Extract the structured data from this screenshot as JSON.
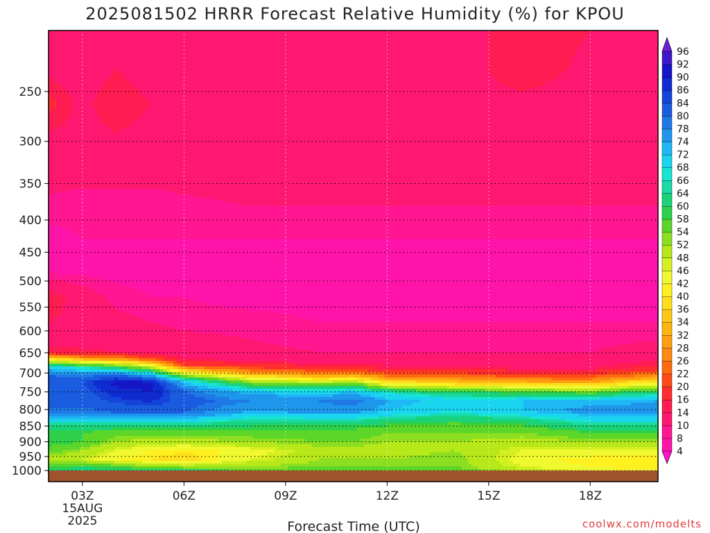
{
  "chart_data": {
    "type": "heatmap",
    "title": "2025081502 HRRR Forecast Relative Humidity (%) for KPOU",
    "xlabel": "Forecast Time (UTC)",
    "ylabel": "",
    "x_ticks": [
      "03Z",
      "06Z",
      "09Z",
      "12Z",
      "15Z",
      "18Z"
    ],
    "x_tick_hours": [
      3,
      6,
      9,
      12,
      15,
      18
    ],
    "x_date_label": [
      "15AUG",
      "2025"
    ],
    "xlim_hours": [
      2,
      20
    ],
    "y_ticks": [
      250,
      300,
      350,
      400,
      450,
      500,
      550,
      600,
      650,
      700,
      750,
      800,
      850,
      900,
      950,
      1000
    ],
    "ylim_hpa": [
      200,
      1000
    ],
    "y_scale": "log-pressure",
    "grid": true,
    "ground_color": "#a0522d",
    "colorbar": {
      "levels": [
        4,
        8,
        10,
        14,
        16,
        20,
        22,
        26,
        28,
        32,
        34,
        36,
        40,
        42,
        46,
        48,
        52,
        54,
        58,
        60,
        64,
        66,
        68,
        72,
        74,
        78,
        80,
        84,
        86,
        90,
        92,
        96
      ],
      "colors": [
        "#ff11cc",
        "#ff14aa",
        "#ff1690",
        "#ff1870",
        "#ff1c50",
        "#ff2d30",
        "#ff4a18",
        "#ff6a10",
        "#ff8a10",
        "#ffa010",
        "#ffb410",
        "#ffc818",
        "#ffde1c",
        "#fff020",
        "#f0f830",
        "#d4f020",
        "#b6e81a",
        "#8cde20",
        "#5cd628",
        "#2ed04a",
        "#1ad27a",
        "#1adaa8",
        "#18e4d2",
        "#1ad4f0",
        "#1eb8f4",
        "#1e96ec",
        "#1e78e6",
        "#1a5ce0",
        "#1444d8",
        "#0e2ad0",
        "#1616c6",
        "#3c18c8",
        "#6e1ed8"
      ],
      "extend": "both"
    },
    "profiles": {
      "hours": [
        2,
        3,
        4,
        5,
        6,
        8,
        10,
        11,
        12,
        14,
        16,
        18,
        20
      ],
      "columns": [
        {
          "p": [
            200,
            230,
            260,
            290,
            330,
            380,
            430,
            480,
            530,
            580,
            620,
            650,
            665,
            685,
            705,
            725,
            750,
            780,
            810,
            840,
            870,
            900,
            930,
            960,
            985,
            1000
          ],
          "rh": [
            13,
            13,
            17,
            14,
            12,
            9,
            7,
            7,
            16,
            14,
            12,
            16,
            40,
            70,
            80,
            82,
            80,
            82,
            78,
            66,
            58,
            60,
            56,
            50,
            58,
            60
          ]
        },
        {
          "p": [
            200,
            230,
            260,
            290,
            330,
            380,
            430,
            480,
            530,
            580,
            620,
            650,
            665,
            685,
            705,
            725,
            750,
            780,
            810,
            840,
            870,
            900,
            930,
            960,
            985,
            1000
          ],
          "rh": [
            12,
            12,
            13,
            13,
            11,
            9,
            8,
            7,
            12,
            13,
            12,
            15,
            32,
            66,
            78,
            84,
            82,
            82,
            78,
            66,
            58,
            58,
            52,
            48,
            60,
            62
          ]
        },
        {
          "p": [
            200,
            230,
            260,
            290,
            330,
            380,
            430,
            480,
            530,
            580,
            620,
            650,
            665,
            685,
            705,
            725,
            750,
            780,
            810,
            840,
            870,
            900,
            930,
            960,
            985,
            1000
          ],
          "rh": [
            12,
            14,
            16,
            14,
            11,
            9,
            8,
            7,
            9,
            11,
            12,
            14,
            28,
            60,
            80,
            92,
            88,
            84,
            80,
            66,
            56,
            52,
            46,
            42,
            56,
            64
          ]
        },
        {
          "p": [
            200,
            230,
            260,
            290,
            330,
            380,
            430,
            480,
            530,
            580,
            620,
            650,
            665,
            685,
            705,
            725,
            750,
            780,
            810,
            840,
            870,
            900,
            930,
            960,
            985,
            1000
          ],
          "rh": [
            12,
            12,
            14,
            13,
            11,
            9,
            8,
            7,
            8,
            10,
            12,
            13,
            22,
            50,
            74,
            92,
            90,
            86,
            80,
            66,
            56,
            50,
            42,
            40,
            54,
            64
          ]
        },
        {
          "p": [
            200,
            230,
            260,
            290,
            330,
            380,
            430,
            480,
            530,
            580,
            620,
            650,
            665,
            680,
            700,
            720,
            745,
            775,
            810,
            840,
            870,
            900,
            930,
            960,
            985,
            1000
          ],
          "rh": [
            12,
            12,
            13,
            13,
            12,
            9,
            8,
            7,
            8,
            9,
            11,
            12,
            14,
            20,
            44,
            70,
            80,
            82,
            80,
            66,
            56,
            50,
            40,
            38,
            50,
            62
          ]
        },
        {
          "p": [
            200,
            230,
            260,
            290,
            330,
            380,
            430,
            480,
            530,
            580,
            620,
            650,
            670,
            690,
            710,
            730,
            750,
            775,
            805,
            840,
            870,
            900,
            930,
            960,
            985,
            1000
          ],
          "rh": [
            12,
            11,
            11,
            12,
            13,
            10,
            8,
            7,
            7,
            9,
            10,
            11,
            14,
            22,
            40,
            58,
            72,
            78,
            74,
            62,
            56,
            52,
            44,
            46,
            52,
            56
          ]
        },
        {
          "p": [
            200,
            230,
            260,
            290,
            330,
            380,
            430,
            480,
            530,
            580,
            620,
            650,
            670,
            690,
            710,
            730,
            750,
            775,
            805,
            840,
            870,
            900,
            930,
            960,
            985,
            1000
          ],
          "rh": [
            10,
            12,
            13,
            12,
            13,
            10,
            8,
            6,
            7,
            8,
            9,
            10,
            12,
            18,
            34,
            54,
            70,
            78,
            76,
            62,
            56,
            54,
            50,
            52,
            54,
            56
          ]
        },
        {
          "p": [
            200,
            230,
            260,
            290,
            330,
            380,
            430,
            480,
            530,
            580,
            620,
            650,
            670,
            690,
            710,
            730,
            750,
            775,
            805,
            840,
            870,
            900,
            930,
            960,
            985,
            1000
          ],
          "rh": [
            12,
            12,
            13,
            12,
            13,
            10,
            8,
            6,
            7,
            8,
            9,
            10,
            12,
            18,
            36,
            58,
            72,
            80,
            76,
            62,
            56,
            54,
            50,
            52,
            54,
            56
          ]
        },
        {
          "p": [
            200,
            230,
            260,
            290,
            330,
            380,
            430,
            480,
            530,
            580,
            620,
            650,
            670,
            690,
            710,
            730,
            750,
            775,
            805,
            840,
            870,
            900,
            930,
            960,
            985,
            1000
          ],
          "rh": [
            12,
            13,
            13,
            12,
            13,
            10,
            8,
            6,
            6,
            8,
            9,
            10,
            12,
            16,
            26,
            44,
            66,
            74,
            72,
            60,
            54,
            52,
            50,
            52,
            54,
            56
          ]
        },
        {
          "p": [
            200,
            230,
            260,
            290,
            330,
            380,
            430,
            480,
            530,
            580,
            620,
            650,
            670,
            690,
            710,
            730,
            750,
            775,
            805,
            840,
            870,
            900,
            930,
            960,
            985,
            1000
          ],
          "rh": [
            12,
            12,
            13,
            12,
            12,
            10,
            8,
            6,
            6,
            8,
            9,
            10,
            12,
            16,
            24,
            40,
            60,
            70,
            68,
            58,
            54,
            52,
            52,
            54,
            54,
            56
          ]
        },
        {
          "p": [
            200,
            230,
            260,
            290,
            330,
            380,
            430,
            480,
            530,
            580,
            620,
            650,
            670,
            690,
            710,
            730,
            750,
            775,
            805,
            840,
            870,
            900,
            930,
            960,
            985,
            1000
          ],
          "rh": [
            16,
            16,
            13,
            12,
            12,
            10,
            8,
            6,
            6,
            8,
            9,
            10,
            12,
            14,
            22,
            38,
            58,
            72,
            72,
            60,
            54,
            50,
            46,
            44,
            46,
            50
          ]
        },
        {
          "p": [
            200,
            230,
            260,
            290,
            330,
            380,
            430,
            480,
            530,
            580,
            620,
            650,
            670,
            690,
            710,
            730,
            750,
            775,
            805,
            840,
            870,
            900,
            930,
            960,
            985,
            1000
          ],
          "rh": [
            14,
            13,
            12,
            12,
            12,
            10,
            8,
            6,
            6,
            8,
            9,
            10,
            12,
            14,
            22,
            36,
            56,
            72,
            76,
            66,
            58,
            52,
            46,
            40,
            42,
            44
          ]
        },
        {
          "p": [
            200,
            230,
            260,
            290,
            330,
            380,
            430,
            480,
            530,
            580,
            620,
            650,
            670,
            690,
            710,
            730,
            750,
            775,
            805,
            840,
            870,
            900,
            930,
            960,
            985,
            1000
          ],
          "rh": [
            12,
            12,
            12,
            12,
            12,
            10,
            8,
            6,
            7,
            8,
            10,
            12,
            14,
            18,
            30,
            46,
            62,
            74,
            76,
            66,
            58,
            52,
            46,
            40,
            40,
            42
          ]
        }
      ]
    }
  },
  "footer": {
    "credit": "coolwx.com/modelts"
  }
}
